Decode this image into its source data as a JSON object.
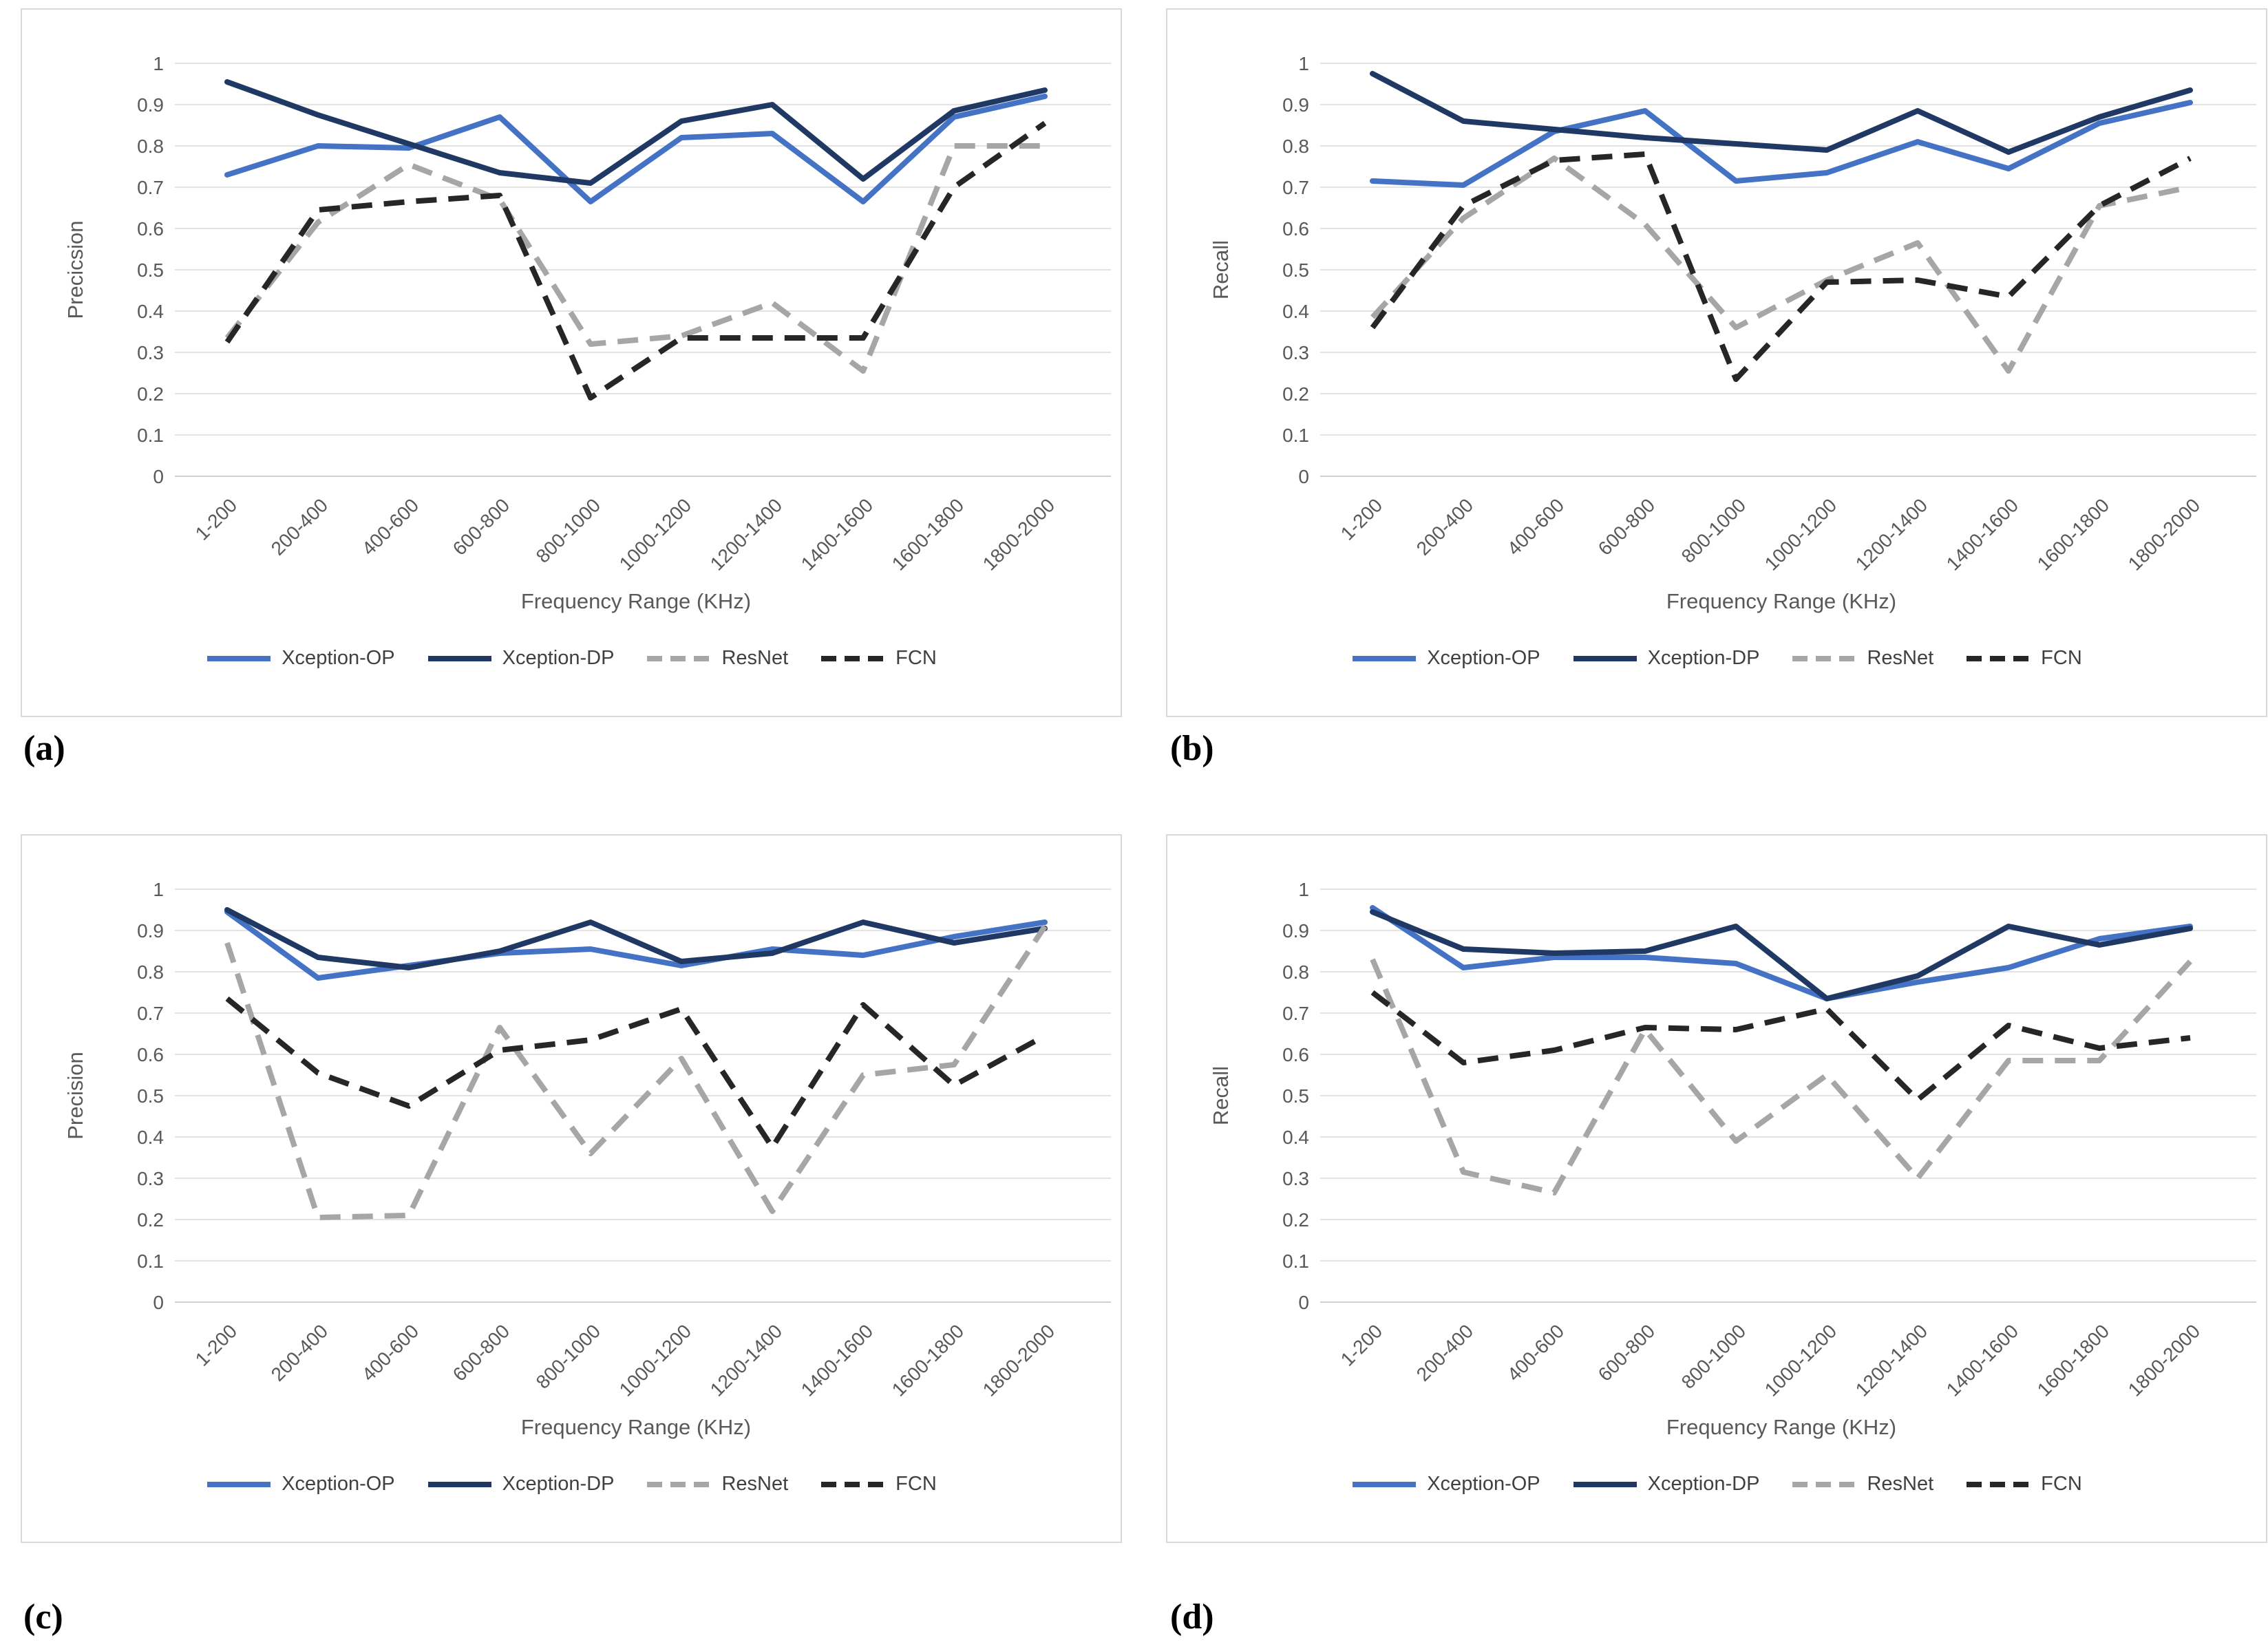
{
  "figure": {
    "background": "#FFFFFF",
    "panel_border_color": "#D9D9D9"
  },
  "style": {
    "grid_color": "#D9D9D9",
    "axis_line_color": "#BFBFBF",
    "tick_text_color": "#595959",
    "axis_title_color": "#595959",
    "legend_text_color": "#404040"
  },
  "axis": {
    "x_title": "Frequency Range (KHz)",
    "categories": [
      "1-200",
      "200-400",
      "400-600",
      "600-800",
      "800-1000",
      "1000-1200",
      "1200-1400",
      "1400-1600",
      "1600-1800",
      "1800-2000"
    ],
    "y_ticks": [
      "1",
      "0.9",
      "0.8",
      "0.7",
      "0.6",
      "0.5",
      "0.4",
      "0.3",
      "0.2",
      "0.1",
      "0"
    ],
    "y_min": 0,
    "y_max": 1
  },
  "series_styles": [
    {
      "name": "Xception-OP",
      "color": "#4472C4",
      "dash": "solid"
    },
    {
      "name": "Xception-DP",
      "color": "#1F3864",
      "dash": "solid"
    },
    {
      "name": "ResNet",
      "color": "#A6A6A6",
      "dash": "dashed"
    },
    {
      "name": "FCN",
      "color": "#262626",
      "dash": "dashed"
    }
  ],
  "chart_data": [
    {
      "type": "line",
      "caption": "(a)",
      "ylabel": "Precicsion",
      "xlabel": "Frequency Range (KHz)",
      "ylim": [
        0,
        1
      ],
      "grid": true,
      "legend_position": "bottom",
      "categories": [
        "1-200",
        "200-400",
        "400-600",
        "600-800",
        "800-1000",
        "1000-1200",
        "1200-1400",
        "1400-1600",
        "1600-1800",
        "1800-2000"
      ],
      "series": [
        {
          "name": "Xception-OP",
          "values": [
            0.73,
            0.8,
            0.795,
            0.87,
            0.665,
            0.82,
            0.83,
            0.665,
            0.87,
            0.92
          ]
        },
        {
          "name": "Xception-DP",
          "values": [
            0.955,
            0.875,
            0.805,
            0.735,
            0.71,
            0.86,
            0.9,
            0.72,
            0.885,
            0.935
          ]
        },
        {
          "name": "ResNet",
          "values": [
            0.335,
            0.615,
            0.755,
            0.67,
            0.32,
            0.34,
            0.42,
            0.255,
            0.8,
            0.8
          ]
        },
        {
          "name": "FCN",
          "values": [
            0.325,
            0.645,
            0.665,
            0.68,
            0.19,
            0.335,
            0.335,
            0.335,
            0.7,
            0.855
          ]
        }
      ]
    },
    {
      "type": "line",
      "caption": "(b)",
      "ylabel": "Recall",
      "xlabel": "Frequency Range (KHz)",
      "ylim": [
        0,
        1
      ],
      "grid": true,
      "legend_position": "bottom",
      "categories": [
        "1-200",
        "200-400",
        "400-600",
        "600-800",
        "800-1000",
        "1000-1200",
        "1200-1400",
        "1400-1600",
        "1600-1800",
        "1800-2000"
      ],
      "series": [
        {
          "name": "Xception-OP",
          "values": [
            0.715,
            0.705,
            0.835,
            0.885,
            0.715,
            0.735,
            0.81,
            0.745,
            0.855,
            0.905
          ]
        },
        {
          "name": "Xception-DP",
          "values": [
            0.975,
            0.86,
            0.84,
            0.82,
            0.805,
            0.79,
            0.885,
            0.785,
            0.87,
            0.935
          ]
        },
        {
          "name": "ResNet",
          "values": [
            0.385,
            0.625,
            0.77,
            0.61,
            0.36,
            0.475,
            0.565,
            0.255,
            0.655,
            0.7
          ]
        },
        {
          "name": "FCN",
          "values": [
            0.36,
            0.655,
            0.765,
            0.78,
            0.235,
            0.47,
            0.475,
            0.435,
            0.655,
            0.77
          ]
        }
      ]
    },
    {
      "type": "line",
      "caption": "(c)",
      "ylabel": "Precision",
      "xlabel": "Frequency Range (KHz)",
      "ylim": [
        0,
        1
      ],
      "grid": true,
      "legend_position": "bottom",
      "categories": [
        "1-200",
        "200-400",
        "400-600",
        "600-800",
        "800-1000",
        "1000-1200",
        "1200-1400",
        "1400-1600",
        "1600-1800",
        "1800-2000"
      ],
      "series": [
        {
          "name": "Xception-OP",
          "values": [
            0.945,
            0.785,
            0.815,
            0.845,
            0.855,
            0.815,
            0.855,
            0.84,
            0.885,
            0.92
          ]
        },
        {
          "name": "Xception-DP",
          "values": [
            0.95,
            0.835,
            0.81,
            0.85,
            0.92,
            0.825,
            0.845,
            0.92,
            0.87,
            0.905
          ]
        },
        {
          "name": "ResNet",
          "values": [
            0.87,
            0.205,
            0.21,
            0.665,
            0.36,
            0.59,
            0.22,
            0.55,
            0.575,
            0.91
          ]
        },
        {
          "name": "FCN",
          "values": [
            0.735,
            0.555,
            0.475,
            0.61,
            0.635,
            0.71,
            0.375,
            0.72,
            0.525,
            0.645
          ]
        }
      ]
    },
    {
      "type": "line",
      "caption": "(d)",
      "ylabel": "Recall",
      "xlabel": "Frequency Range (KHz)",
      "ylim": [
        0,
        1
      ],
      "grid": true,
      "legend_position": "bottom",
      "categories": [
        "1-200",
        "200-400",
        "400-600",
        "600-800",
        "800-1000",
        "1000-1200",
        "1200-1400",
        "1400-1600",
        "1600-1800",
        "1800-2000"
      ],
      "series": [
        {
          "name": "Xception-OP",
          "values": [
            0.955,
            0.81,
            0.835,
            0.835,
            0.82,
            0.735,
            0.775,
            0.81,
            0.88,
            0.91
          ]
        },
        {
          "name": "Xception-DP",
          "values": [
            0.945,
            0.855,
            0.845,
            0.85,
            0.91,
            0.735,
            0.79,
            0.91,
            0.865,
            0.905
          ]
        },
        {
          "name": "ResNet",
          "values": [
            0.83,
            0.315,
            0.265,
            0.66,
            0.39,
            0.55,
            0.3,
            0.585,
            0.585,
            0.825
          ]
        },
        {
          "name": "FCN",
          "values": [
            0.75,
            0.58,
            0.61,
            0.665,
            0.66,
            0.71,
            0.49,
            0.67,
            0.615,
            0.64
          ]
        }
      ]
    }
  ]
}
